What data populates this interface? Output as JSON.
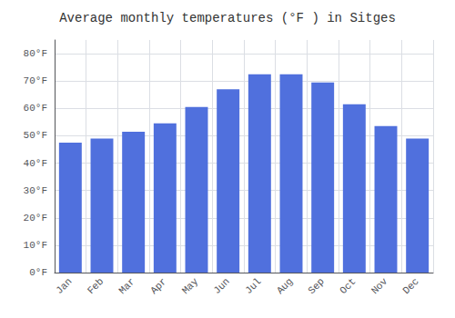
{
  "chart_data": {
    "type": "bar",
    "title": "Average monthly temperatures (°F ) in Sitges",
    "categories": [
      "Jan",
      "Feb",
      "Mar",
      "Apr",
      "May",
      "Jun",
      "Jul",
      "Aug",
      "Sep",
      "Oct",
      "Nov",
      "Dec"
    ],
    "values": [
      47.5,
      49.0,
      51.5,
      54.5,
      60.5,
      67.0,
      72.5,
      72.5,
      69.5,
      61.5,
      53.5,
      49.0
    ],
    "ylim": [
      0,
      85
    ],
    "yticks": [
      {
        "value": 0,
        "label": "0°F"
      },
      {
        "value": 10,
        "label": "10°F"
      },
      {
        "value": 20,
        "label": "20°F"
      },
      {
        "value": 30,
        "label": "30°F"
      },
      {
        "value": 40,
        "label": "40°F"
      },
      {
        "value": 50,
        "label": "50°F"
      },
      {
        "value": 60,
        "label": "60°F"
      },
      {
        "value": 70,
        "label": "70°F"
      },
      {
        "value": 80,
        "label": "80°F"
      }
    ],
    "grid": true
  }
}
